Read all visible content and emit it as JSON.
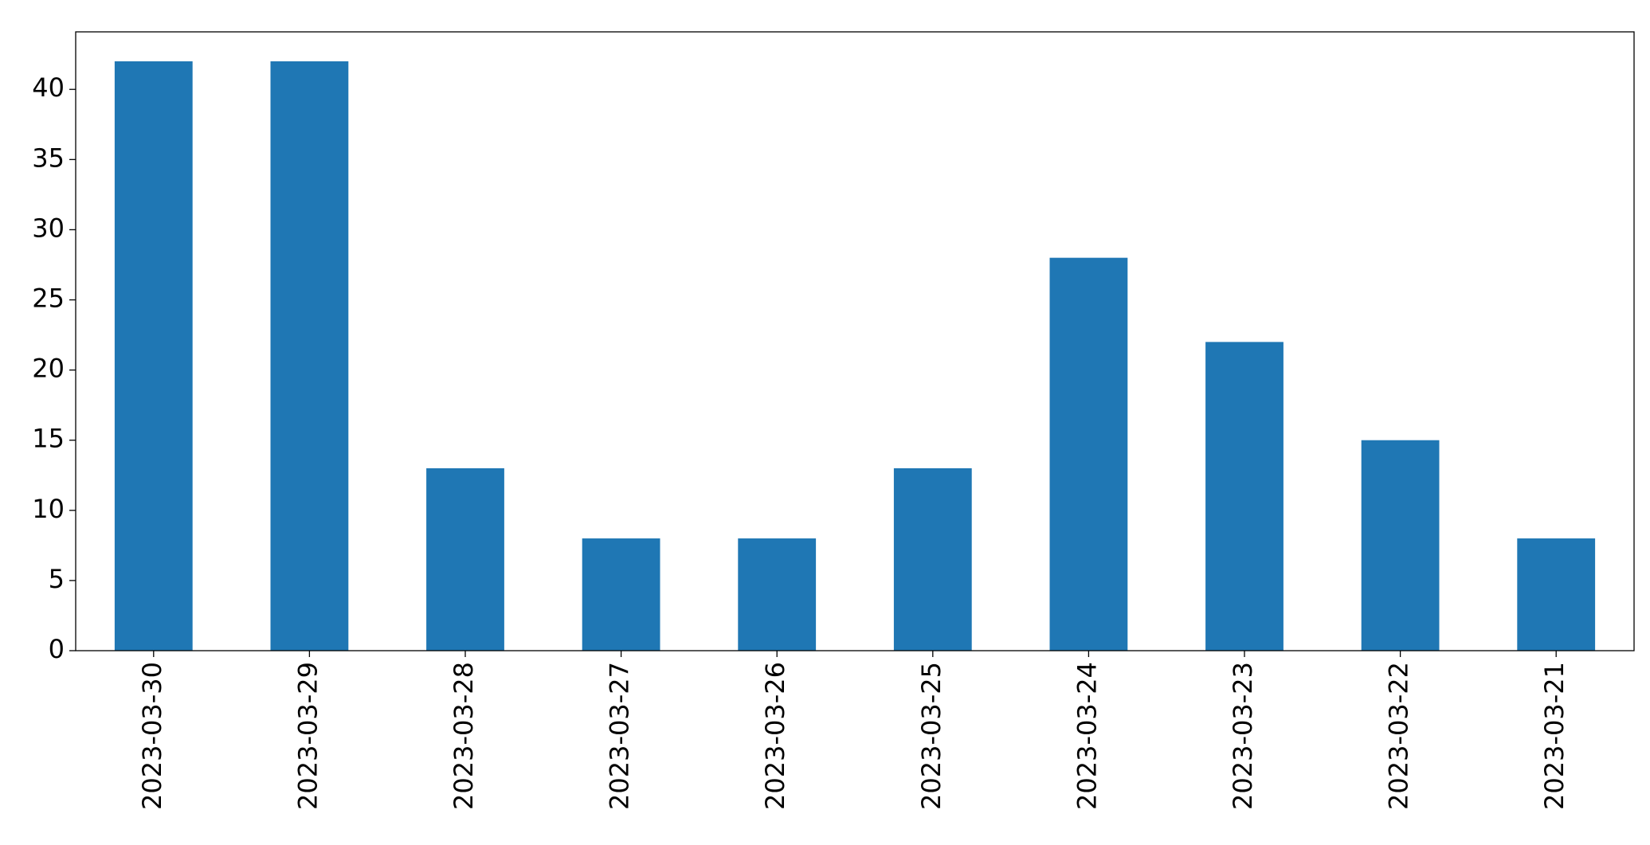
{
  "chart_data": {
    "type": "bar",
    "categories": [
      "2023-03-30",
      "2023-03-29",
      "2023-03-28",
      "2023-03-27",
      "2023-03-26",
      "2023-03-25",
      "2023-03-24",
      "2023-03-23",
      "2023-03-22",
      "2023-03-21"
    ],
    "values": [
      42,
      42,
      13,
      8,
      8,
      13,
      28,
      22,
      15,
      8
    ],
    "color": "#1f77b4",
    "ylim": [
      0,
      44.1
    ],
    "yticks": [
      0,
      5,
      10,
      15,
      20,
      25,
      30,
      35,
      40
    ],
    "grid": false
  }
}
